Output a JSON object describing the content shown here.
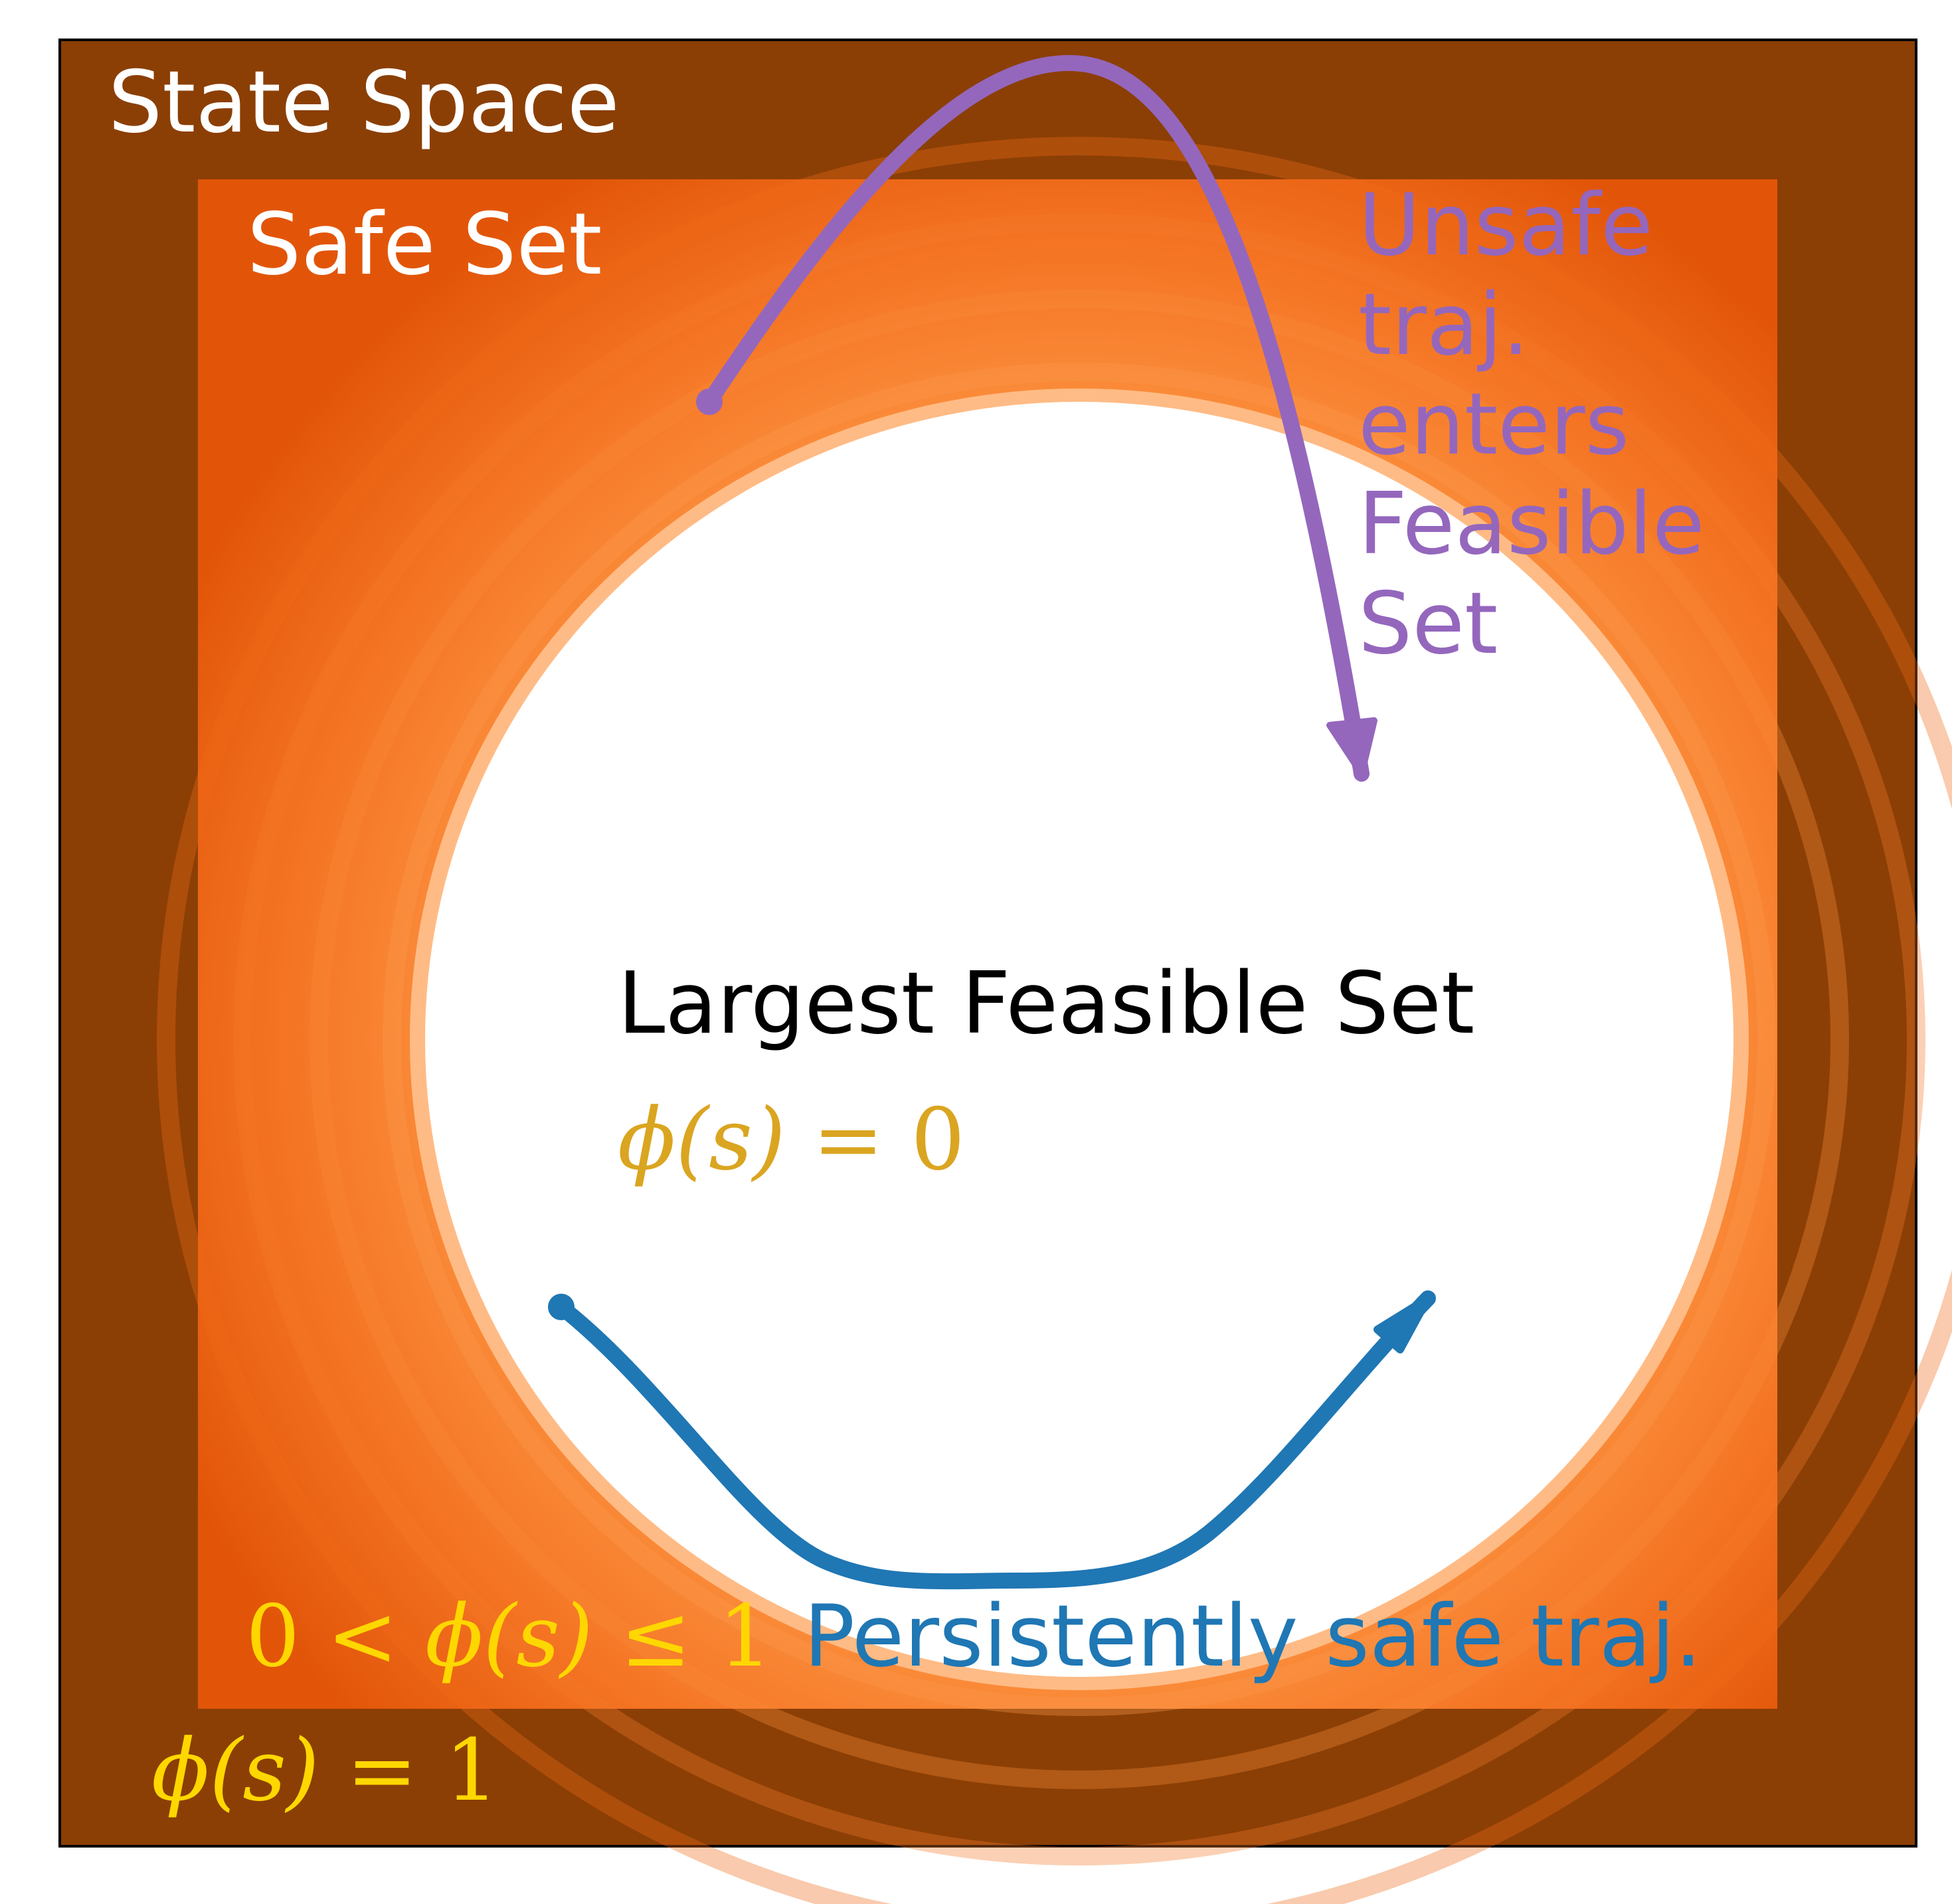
{
  "colors": {
    "state_space": "#8b3f05",
    "safe_set_outer": "#e25508",
    "safe_set_inner": "#fdab6c",
    "feasible_set": "#ffffff",
    "unsafe_traj": "#9467bd",
    "persistent_traj": "#1f77b4",
    "phi_zero": "#daa520",
    "phi_levels": "#ffd700",
    "region_label": "#ffffff",
    "feasible_label": "#000000"
  },
  "labels": {
    "state_space": "State Space",
    "safe_set": "Safe Set",
    "largest_feasible_set": "Largest Feasible Set",
    "unsafe_traj": [
      "Unsafe",
      "traj.",
      "enters",
      "Feasible",
      "Set"
    ],
    "persistent_traj": "Persistently safe traj."
  },
  "math": {
    "phi_zero": {
      "fn": "ϕ(s)",
      "rel": " = ",
      "val": "0"
    },
    "phi_one": {
      "fn": "ϕ(s)",
      "rel": " = ",
      "val": "1"
    },
    "phi_between": {
      "lo": "0",
      "rel1": " < ",
      "fn": "ϕ(s)",
      "rel2": " ≤ ",
      "hi": "1"
    }
  }
}
